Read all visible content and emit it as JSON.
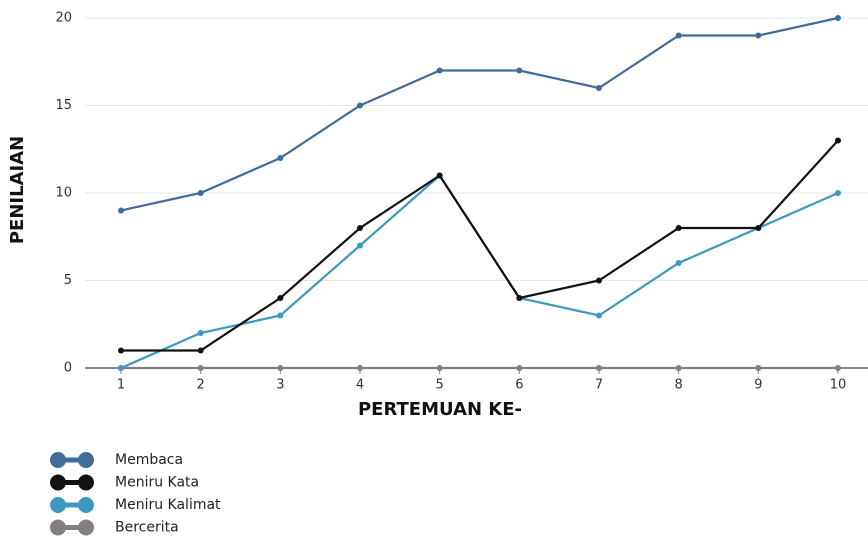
{
  "chart_data": {
    "type": "line",
    "x_label": "PERTEMUAN KE-",
    "y_label": "PENILAIAN",
    "x": [
      1,
      2,
      3,
      4,
      5,
      6,
      7,
      8,
      9,
      10
    ],
    "xlim": [
      1,
      10
    ],
    "xticks": [
      1,
      2,
      3,
      4,
      5,
      6,
      7,
      8,
      9,
      10
    ],
    "ylim": [
      0,
      20
    ],
    "yticks": [
      0,
      5,
      10,
      15,
      20
    ],
    "grid": true,
    "legend": "bottom-left",
    "series": [
      {
        "name": "Membaca",
        "color": "#3f6c98",
        "values": [
          9,
          10,
          12,
          15,
          17,
          17,
          16,
          19,
          19,
          20
        ]
      },
      {
        "name": "Meniru Kata",
        "color": "#111111",
        "values": [
          1,
          1,
          4,
          8,
          11,
          4,
          5,
          8,
          8,
          13
        ]
      },
      {
        "name": "Meniru Kalimat",
        "color": "#3c98bf",
        "values": [
          0,
          2,
          3,
          7,
          11,
          4,
          3,
          6,
          8,
          10
        ]
      },
      {
        "name": "Bercerita",
        "color": "#808080",
        "values": [
          0,
          0,
          0,
          0,
          0,
          0,
          0,
          0,
          0,
          0
        ]
      }
    ]
  }
}
